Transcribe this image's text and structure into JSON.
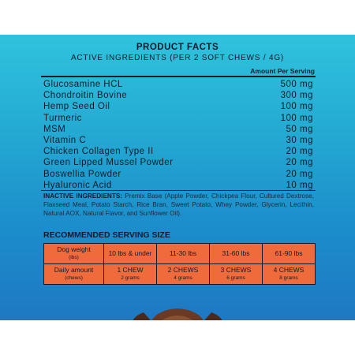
{
  "facts": {
    "title": "PRODUCT FACTS",
    "subtitle": "ACTIVE INGREDIENTS (PER 2 SOFT CHEWS / 4G)",
    "amount_header": "Amount Per Serving",
    "ingredients": [
      {
        "name": "Glucosamine HCL",
        "amount": "500 mg"
      },
      {
        "name": "Chondroitin Bovine",
        "amount": "300 mg"
      },
      {
        "name": "Hemp Seed Oil",
        "amount": "100 mg"
      },
      {
        "name": "Turmeric",
        "amount": "100 mg"
      },
      {
        "name": "MSM",
        "amount": "50 mg"
      },
      {
        "name": "Vitamin C",
        "amount": "30 mg"
      },
      {
        "name": "Chicken Collagen Type II",
        "amount": "20 mg"
      },
      {
        "name": "Green Lipped Mussel Powder",
        "amount": "20 mg"
      },
      {
        "name": "Boswellia Powder",
        "amount": "20 mg"
      },
      {
        "name": "Hyaluronic Acid",
        "amount": "10 mg"
      }
    ],
    "inactive_label": "INACTIVE INGREDIENTS:",
    "inactive_text": "Premix Base (Apple Powder, Chickpea Flour, Cultured Dextrose, Flaxseed Meal, Potato Starch, Rice Bran, Sweet Potato, Whey Powder, Glycerin, Lecithin, Natural AOX, Natural Flavor, and Sunflower Oil)."
  },
  "serving": {
    "title": "RECOMMENDED SERVING SIZE",
    "weight_row": {
      "label_main": "Dog weight",
      "label_sub": "(lbs)",
      "cells": [
        "10 lbs & under",
        "11-30 lbs",
        "31-60 lbs",
        "61-90 lbs"
      ]
    },
    "amount_row": {
      "label_main": "Daily amount",
      "label_sub": "(chews)",
      "cells": [
        {
          "main": "1 CHEW",
          "sub": "2 grams"
        },
        {
          "main": "2 CHEWS",
          "sub": "4 grams"
        },
        {
          "main": "3 CHEWS",
          "sub": "6 grams"
        },
        {
          "main": "4 CHEWS",
          "sub": "8 grams"
        }
      ]
    }
  },
  "colors": {
    "panel_top": "#2fc3dd",
    "panel_bottom": "#1e78c2",
    "table_cell": "#ef6b3c",
    "text": "#0f1b2a"
  }
}
